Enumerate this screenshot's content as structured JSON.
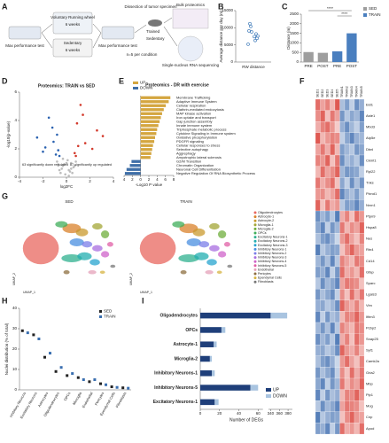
{
  "figure": {
    "panel_labels": [
      "A",
      "B",
      "C",
      "D",
      "E",
      "F",
      "G",
      "H",
      "I"
    ]
  },
  "diagram": {
    "steps": [
      "Max performance test",
      "Voluntary Running wheel",
      "6 weeks",
      "Sedentary",
      "6 weeks",
      "Max performance test",
      "Dissection of tumor specimen",
      "Trained",
      "Sedentary",
      "n=5 per condition",
      "Bulk proteomics",
      "Single-nucleus RNA sequencing"
    ]
  },
  "chart_data": [
    {
      "type": "dot",
      "xlabel": "RW distance",
      "ylabel": "Average distance per day (m)",
      "values": [
        5200,
        7400,
        9100,
        6300,
        11200,
        8200,
        10400,
        6900,
        8800,
        7600
      ],
      "color": "#2e6fb3",
      "ylim": [
        0,
        15000
      ],
      "yticks": [
        0,
        5000,
        10000,
        15000
      ]
    },
    {
      "type": "bar",
      "ylabel": "Distance (m)",
      "categories": [
        "PRE",
        "POST",
        "PRE",
        "POST"
      ],
      "series": [
        {
          "name": "SED",
          "color": "#9e9e9e",
          "values": [
            520,
            480,
            null,
            null
          ]
        },
        {
          "name": "TRAIN",
          "color": "#4a7fbf",
          "values": [
            null,
            null,
            560,
            1500
          ]
        }
      ],
      "ylim": [
        0,
        2500
      ],
      "yticks": [
        0,
        500,
        1000,
        1500,
        2000,
        2500
      ],
      "annotations": [
        "****",
        "****"
      ]
    },
    {
      "type": "volcano",
      "title": "Proteomics: TRAIN vs SED",
      "xlabel": "log2FC",
      "ylabel": "-log10(p-value)",
      "xlim": [
        -4,
        4
      ],
      "xticks": [
        -4,
        -2,
        0,
        2,
        4
      ],
      "ylim": [
        0,
        6
      ],
      "yticks": [
        0,
        2,
        4,
        6
      ],
      "series": [
        {
          "color": "#bdbdbd",
          "x": [
            -0.5,
            -0.3,
            0.2,
            0.4,
            -0.1,
            0.6,
            -0.7,
            0.1,
            0.3,
            -0.4,
            0.8,
            -0.2,
            0.5,
            -0.6,
            0.0,
            0.7,
            -0.8,
            0.2,
            -0.3,
            0.4
          ],
          "values": [
            0.3,
            0.8,
            0.5,
            1.0,
            0.2,
            0.7,
            0.9,
            1.2,
            0.4,
            0.6,
            1.1,
            0.9,
            0.3,
            0.5,
            1.0,
            0.8,
            1.1,
            0.1,
            1.3,
            0.6
          ]
        },
        {
          "color": "#2b62b0",
          "x": [
            -1.8,
            -1.2,
            -0.9,
            -2.5,
            -1.5,
            -0.7,
            -1.1,
            -0.6,
            -2.0,
            -0.8
          ],
          "values": [
            2.1,
            3.5,
            1.6,
            2.8,
            4.2,
            1.9,
            2.5,
            1.5,
            1.8,
            3.0
          ]
        },
        {
          "color": "#d33a2c",
          "x": [
            1.6,
            0.9,
            2.2,
            1.2,
            0.7,
            3.1,
            1.4,
            0.8,
            2.6,
            1.0
          ],
          "values": [
            2.4,
            3.8,
            2.0,
            5.1,
            1.7,
            2.9,
            4.4,
            1.5,
            3.3,
            2.2
          ]
        }
      ],
      "annotations": [
        "63 significantly down regulated",
        "87 significantly up regulated"
      ]
    },
    {
      "type": "barh_diverging",
      "title": "Proteomics - DR with exercise",
      "xlabel": "-Log10 P value",
      "categories": [
        "Membrane Trafficking",
        "Adaptive Immune System",
        "Cellular respiration",
        "Clathrin-mediated endocytosis",
        "MAP kinase activation",
        "Iron uptake and transport",
        "Gap junction assembly",
        "Innate immune system",
        "Triphosphate metabolic process",
        "Cytokine Signaling in Immune system",
        "Oxidative phosphorylation",
        "PDGFR signaling",
        "Cellular responses to stress",
        "Selective autophagy",
        "Aggrephagy",
        "Amyotrophic lateral sclerosis",
        "G2/M Transition",
        "Chromatin Organization",
        "Neuronal Cell Differentiation",
        "Negative Regulation Of RNA Biosynthetic Process"
      ],
      "series": [
        {
          "name": "UP",
          "color": "#d4a640",
          "values": [
            7.2,
            6.8,
            6.1,
            5.6,
            5.2,
            4.9,
            4.6,
            4.3,
            4.0,
            3.8,
            3.5,
            3.3,
            3.0,
            2.8,
            2.6,
            2.4,
            null,
            null,
            null,
            null
          ]
        },
        {
          "name": "DOWN",
          "color": "#3f6fa8",
          "values": [
            null,
            null,
            null,
            null,
            null,
            null,
            null,
            null,
            null,
            null,
            null,
            null,
            null,
            null,
            null,
            null,
            -2.2,
            -2.6,
            -3.4,
            -3.8
          ]
        }
      ],
      "xlim": [
        -4,
        8
      ],
      "xticks": [
        {
          "value": -4,
          "label": "4"
        },
        {
          "value": -2,
          "label": "2"
        },
        0,
        2,
        4,
        6,
        8
      ]
    },
    {
      "type": "heatmap",
      "columns": [
        "SED1",
        "SED2",
        "SED3",
        "SED4",
        "SED5",
        "TRAIN1",
        "TRAIN2",
        "TRAIN3",
        "TRAIN4",
        "TRAIN5"
      ],
      "rows": [
        "Eid1",
        "Aste1",
        "Mbd3",
        "Atp5e",
        "Dbnl",
        "Ckmt1",
        "Rpl22",
        "Tnks",
        "Plxnd1",
        "Nrxn1",
        "Ptpn9",
        "Hspa8",
        "Nes",
        "Rtn4",
        "Cd14",
        "Gfap",
        "Sparc",
        "Lgals3",
        "Vim",
        "Ifitm3",
        "Pcbp2",
        "Snap25",
        "Syt1",
        "Camk2a",
        "Gria2",
        "Mbp",
        "Plp1",
        "Mog",
        "Cnp",
        "Apod"
      ],
      "zlim": [
        -2,
        2
      ],
      "colorscale": [
        "#2c5fa8",
        "#ffffff",
        "#d73027"
      ],
      "values": [
        [
          1.4,
          0.9,
          1.2,
          0.7,
          1.6,
          -0.8,
          -1.2,
          -0.6,
          -1.4,
          -1.0
        ],
        [
          1.1,
          1.5,
          0.6,
          1.3,
          0.9,
          -1.3,
          -0.7,
          -1.1,
          -0.9,
          -1.5
        ],
        [
          0.8,
          1.2,
          1.4,
          1.0,
          0.5,
          -1.0,
          -1.4,
          -0.9,
          -0.6,
          -1.2
        ],
        [
          1.6,
          0.7,
          1.0,
          1.2,
          1.1,
          -0.6,
          -1.1,
          -1.5,
          -1.0,
          -0.9
        ],
        [
          0.9,
          1.3,
          0.8,
          1.5,
          0.7,
          -1.2,
          -0.9,
          -0.7,
          -1.3,
          -1.1
        ],
        [
          1.2,
          1.0,
          1.5,
          0.6,
          1.3,
          -1.4,
          -0.8,
          -1.0,
          -0.7,
          -1.4
        ],
        [
          0.7,
          1.4,
          0.9,
          1.1,
          1.5,
          -0.9,
          -1.3,
          -1.2,
          -1.1,
          -0.6
        ],
        [
          1.3,
          0.8,
          1.1,
          1.4,
          0.6,
          -1.1,
          -0.6,
          -1.4,
          -0.8,
          -1.3
        ],
        [
          1.0,
          1.1,
          0.7,
          0.9,
          1.4,
          -1.5,
          -1.0,
          -0.8,
          -1.2,
          -0.7
        ],
        [
          1.5,
          0.6,
          1.3,
          0.8,
          1.0,
          -0.7,
          -1.2,
          -1.1,
          -1.5,
          -1.0
        ],
        [
          -1.4,
          -0.9,
          -1.2,
          -0.7,
          -1.6,
          0.8,
          1.2,
          0.6,
          1.4,
          1.0
        ],
        [
          -1.1,
          -1.5,
          -0.6,
          -1.3,
          -0.9,
          1.3,
          0.7,
          1.1,
          0.9,
          1.5
        ],
        [
          -0.8,
          -1.2,
          -1.4,
          -1.0,
          -0.5,
          1.0,
          1.4,
          0.9,
          0.6,
          1.2
        ],
        [
          -1.6,
          -0.7,
          -1.0,
          -1.2,
          -1.1,
          0.6,
          1.1,
          1.5,
          1.0,
          0.9
        ],
        [
          -0.9,
          -1.3,
          -0.8,
          -1.5,
          -0.7,
          1.2,
          0.9,
          0.7,
          1.3,
          1.1
        ],
        [
          -1.2,
          -1.0,
          -1.5,
          -0.6,
          -1.3,
          1.4,
          0.8,
          1.0,
          0.7,
          1.4
        ],
        [
          -0.7,
          -1.4,
          -0.9,
          -1.1,
          -1.5,
          0.9,
          1.3,
          1.2,
          1.1,
          0.6
        ],
        [
          -1.3,
          -0.8,
          -1.1,
          -1.4,
          -0.6,
          1.1,
          0.6,
          1.4,
          0.8,
          1.3
        ],
        [
          -1.0,
          -1.1,
          -0.7,
          -0.9,
          -1.4,
          1.5,
          1.0,
          0.8,
          1.2,
          0.7
        ],
        [
          -1.5,
          -0.6,
          -1.3,
          -0.8,
          -1.0,
          0.7,
          1.2,
          1.1,
          1.5,
          1.0
        ],
        [
          -0.9,
          -1.3,
          -0.8,
          -1.5,
          -0.7,
          1.2,
          0.9,
          0.7,
          1.3,
          1.1
        ],
        [
          -1.4,
          -0.9,
          -1.2,
          -0.7,
          -1.6,
          0.8,
          1.2,
          0.6,
          1.4,
          1.0
        ],
        [
          -1.0,
          -1.1,
          -0.7,
          -0.9,
          -1.4,
          1.5,
          1.0,
          0.8,
          1.2,
          0.7
        ],
        [
          -0.8,
          -1.2,
          -1.4,
          -1.0,
          -0.5,
          1.0,
          1.4,
          0.9,
          0.6,
          1.2
        ],
        [
          -1.3,
          -0.8,
          -1.1,
          -1.4,
          -0.6,
          1.1,
          0.6,
          1.4,
          0.8,
          1.3
        ],
        [
          -1.1,
          -1.5,
          -0.6,
          -1.3,
          -0.9,
          1.3,
          0.7,
          1.1,
          0.9,
          1.5
        ],
        [
          -1.5,
          -0.6,
          -1.3,
          -0.8,
          -1.0,
          0.7,
          1.2,
          1.1,
          1.5,
          1.0
        ],
        [
          -0.7,
          -1.4,
          -0.9,
          -1.1,
          -1.5,
          0.9,
          1.3,
          1.2,
          1.1,
          0.6
        ],
        [
          -1.6,
          -0.7,
          -1.0,
          -1.2,
          -1.1,
          0.6,
          1.1,
          1.5,
          1.0,
          0.9
        ],
        [
          -1.2,
          -1.0,
          -1.5,
          -0.6,
          -1.3,
          1.4,
          0.8,
          1.0,
          0.7,
          1.4
        ]
      ]
    },
    {
      "type": "umap",
      "titles": [
        "SED",
        "TRAIN"
      ],
      "xlabel": "UMAP_1",
      "ylabel": "UMAP_2",
      "clusters": [
        {
          "name": "Oligodendrocytes",
          "color": "#e8675f"
        },
        {
          "name": "Astrocyte-1",
          "color": "#d9822b"
        },
        {
          "name": "Astrocyte-2",
          "color": "#c99a2e"
        },
        {
          "name": "Microglia-1",
          "color": "#a3a536"
        },
        {
          "name": "Microglia-2",
          "color": "#6fae3c"
        },
        {
          "name": "OPCs",
          "color": "#3fae5a"
        },
        {
          "name": "Excitatory Neurons-1",
          "color": "#2fb08f"
        },
        {
          "name": "Excitatory Neurons-2",
          "color": "#22aeb0"
        },
        {
          "name": "Excitatory Neurons-3",
          "color": "#27a4cf"
        },
        {
          "name": "Inhibitory Neurons-1",
          "color": "#4a8fe0"
        },
        {
          "name": "Inhibitory Neurons-2",
          "color": "#7b7de8"
        },
        {
          "name": "Inhibitory Neurons-3",
          "color": "#a86ee0"
        },
        {
          "name": "Inhibitory Neurons-4",
          "color": "#cf63c9"
        },
        {
          "name": "Inhibitory Neurons-5",
          "color": "#e05fa6"
        },
        {
          "name": "Endothelial",
          "color": "#e4a0b8"
        },
        {
          "name": "Pericytes",
          "color": "#8c6d3f"
        },
        {
          "name": "Ependymal Cells",
          "color": "#d6b340"
        },
        {
          "name": "Fibroblasts",
          "color": "#777777"
        }
      ]
    },
    {
      "type": "dot_grouped",
      "ylabel": "Nuclei distribution (% of total)",
      "categories": [
        "Inhibitory Neurons",
        "Excitatory Neurons",
        "Astrocytes",
        "Oligodendrocytes",
        "OPCs",
        "Microglia",
        "Endothelial",
        "Pericytes",
        "Ependymal Cells",
        "Fibroblasts"
      ],
      "series": [
        {
          "name": "SED",
          "color": "#222222",
          "values": [
            29,
            27,
            16,
            9,
            7,
            6,
            4,
            3,
            1.5,
            1
          ]
        },
        {
          "name": "TRAIN",
          "color": "#3a6fb0",
          "values": [
            28,
            25,
            18,
            11,
            8,
            5,
            5,
            2.5,
            1.2,
            0.8
          ]
        }
      ],
      "ylim": [
        0,
        40
      ],
      "yticks": [
        0,
        10,
        20,
        30,
        40
      ]
    },
    {
      "type": "barh_stacked",
      "xlabel": "Number of DEGs",
      "categories": [
        "Oligodendrocytes",
        "OPCs",
        "Astrocyte-1",
        "Microglia-2",
        "Inhibitory Neurons-1",
        "Inhibitory Neurons-5",
        "Excitatory Neurons-1"
      ],
      "series": [
        {
          "name": "UP",
          "color": "#1f3f7a",
          "values": [
            340,
            22,
            14,
            10,
            12,
            52,
            15
          ]
        },
        {
          "name": "DOWN",
          "color": "#a9c4e0",
          "values": [
            38,
            4,
            3,
            2,
            3,
            8,
            4
          ]
        }
      ],
      "xlim": [
        0,
        390
      ],
      "axis_break": [
        65,
        335
      ],
      "xticks": [
        0,
        20,
        40,
        60,
        340,
        360,
        380
      ]
    }
  ]
}
